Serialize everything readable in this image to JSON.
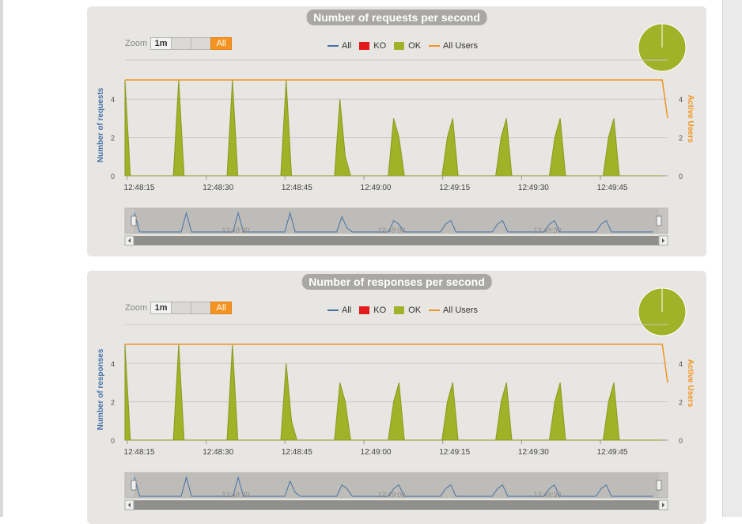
{
  "panels": [
    {
      "title": "Number of requests per second",
      "y_axis_label": "Number of requests",
      "y2_axis_label": "Active Users",
      "zoom": {
        "label": "Zoom",
        "buttons": [
          "1m",
          "",
          "",
          "All"
        ],
        "selected": "All"
      },
      "legend": [
        {
          "label": "All",
          "color": "#4572a7",
          "kind": "line"
        },
        {
          "label": "KO",
          "color": "#e31b1b",
          "kind": "box"
        },
        {
          "label": "OK",
          "color": "#a0b228",
          "kind": "box"
        },
        {
          "label": "All Users",
          "color": "#f39321",
          "kind": "line"
        }
      ],
      "pie": {
        "ok_fraction": 1.0,
        "color": "#a0b228"
      }
    },
    {
      "title": "Number of responses per second",
      "y_axis_label": "Number of responses",
      "y2_axis_label": "Active Users",
      "zoom": {
        "label": "Zoom",
        "buttons": [
          "1m",
          "",
          "",
          "All"
        ],
        "selected": "All"
      },
      "legend": [
        {
          "label": "All",
          "color": "#4572a7",
          "kind": "line"
        },
        {
          "label": "KO",
          "color": "#e31b1b",
          "kind": "box"
        },
        {
          "label": "OK",
          "color": "#a0b228",
          "kind": "box"
        },
        {
          "label": "All Users",
          "color": "#f39321",
          "kind": "line"
        }
      ],
      "pie": {
        "ok_fraction": 1.0,
        "color": "#a0b228"
      }
    }
  ],
  "colors": {
    "ok": "#a0b228",
    "all": "#4572a7",
    "users": "#f39321",
    "ko": "#e31b1b",
    "panel_bg": "#e7e6e2"
  },
  "chart_data": [
    {
      "type": "area",
      "title": "Number of requests per second",
      "x_ticks": [
        "12:48:15",
        "12:48:30",
        "12:48:45",
        "12:49:00",
        "12:49:15",
        "12:49:30",
        "12:49:45"
      ],
      "y_ticks": [
        "0",
        "2",
        "4"
      ],
      "y2_ticks": [
        "0",
        "2",
        "4"
      ],
      "ylim": [
        0,
        5
      ],
      "y2lim": [
        0,
        5
      ],
      "navigator_ticks": [
        "12:48:30",
        "12:49:00",
        "12:49:30"
      ],
      "series": [
        {
          "name": "OK",
          "points": [
            [
              0,
              5
            ],
            [
              1,
              0
            ],
            [
              9,
              0
            ],
            [
              10,
              5
            ],
            [
              11,
              0
            ],
            [
              19,
              0
            ],
            [
              20,
              5
            ],
            [
              21,
              0
            ],
            [
              29,
              0
            ],
            [
              30,
              5
            ],
            [
              31,
              0
            ],
            [
              39,
              0
            ],
            [
              40,
              4
            ],
            [
              41,
              1
            ],
            [
              42,
              0
            ],
            [
              49,
              0
            ],
            [
              50,
              3
            ],
            [
              51,
              2
            ],
            [
              52,
              0
            ],
            [
              59,
              0
            ],
            [
              60,
              2
            ],
            [
              61,
              3
            ],
            [
              62,
              0
            ],
            [
              69,
              0
            ],
            [
              70,
              2
            ],
            [
              71,
              3
            ],
            [
              72,
              0
            ],
            [
              79,
              0
            ],
            [
              80,
              2
            ],
            [
              81,
              3
            ],
            [
              82,
              0
            ],
            [
              89,
              0
            ],
            [
              90,
              2
            ],
            [
              91,
              3
            ],
            [
              92,
              0
            ],
            [
              100,
              0
            ]
          ]
        },
        {
          "name": "All Users",
          "points": [
            [
              0,
              5
            ],
            [
              100,
              5
            ],
            [
              101,
              3
            ]
          ]
        }
      ]
    },
    {
      "type": "area",
      "title": "Number of responses per second",
      "x_ticks": [
        "12:48:15",
        "12:48:30",
        "12:48:45",
        "12:49:00",
        "12:49:15",
        "12:49:30",
        "12:49:45"
      ],
      "y_ticks": [
        "0",
        "2",
        "4"
      ],
      "y2_ticks": [
        "0",
        "2",
        "4"
      ],
      "ylim": [
        0,
        5
      ],
      "y2lim": [
        0,
        5
      ],
      "navigator_ticks": [
        "12:48:30",
        "12:49:00",
        "12:49:30"
      ],
      "series": [
        {
          "name": "OK",
          "points": [
            [
              0,
              5
            ],
            [
              1,
              0
            ],
            [
              9,
              0
            ],
            [
              10,
              5
            ],
            [
              11,
              0
            ],
            [
              19,
              0
            ],
            [
              20,
              5
            ],
            [
              21,
              0
            ],
            [
              29,
              0
            ],
            [
              30,
              4
            ],
            [
              31,
              1
            ],
            [
              32,
              0
            ],
            [
              39,
              0
            ],
            [
              40,
              3
            ],
            [
              41,
              2
            ],
            [
              42,
              0
            ],
            [
              49,
              0
            ],
            [
              50,
              2
            ],
            [
              51,
              3
            ],
            [
              52,
              0
            ],
            [
              59,
              0
            ],
            [
              60,
              2
            ],
            [
              61,
              3
            ],
            [
              62,
              0
            ],
            [
              69,
              0
            ],
            [
              70,
              2
            ],
            [
              71,
              3
            ],
            [
              72,
              0
            ],
            [
              79,
              0
            ],
            [
              80,
              2
            ],
            [
              81,
              3
            ],
            [
              82,
              0
            ],
            [
              89,
              0
            ],
            [
              90,
              2
            ],
            [
              91,
              3
            ],
            [
              92,
              0
            ],
            [
              100,
              0
            ]
          ]
        },
        {
          "name": "All Users",
          "points": [
            [
              0,
              5
            ],
            [
              100,
              5
            ],
            [
              101,
              3
            ]
          ]
        }
      ]
    }
  ]
}
